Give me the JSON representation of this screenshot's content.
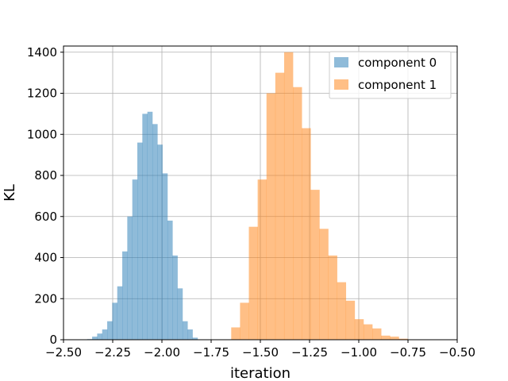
{
  "chart_data": {
    "type": "histogram",
    "xlabel": "iteration",
    "ylabel": "KL",
    "xlim": [
      -2.5,
      -0.5
    ],
    "ylim": [
      0,
      1430
    ],
    "x_ticks": [
      -2.5,
      -2.25,
      -2.0,
      -1.75,
      -1.5,
      -1.25,
      -1.0,
      -0.75,
      -0.5
    ],
    "x_tick_labels": [
      "−2.50",
      "−2.25",
      "−2.00",
      "−1.75",
      "−1.50",
      "−1.25",
      "−1.00",
      "−0.75",
      "−0.50"
    ],
    "y_ticks": [
      0,
      200,
      400,
      600,
      800,
      1000,
      1200,
      1400
    ],
    "y_tick_labels": [
      "0",
      "200",
      "400",
      "600",
      "800",
      "1000",
      "1200",
      "1400"
    ],
    "grid": true,
    "legend_position": "top-right",
    "series": [
      {
        "name": "component 0",
        "color": "#1f77b4",
        "opacity": 0.5,
        "bin_start": -2.38,
        "bin_width": 0.0255,
        "counts": [
          3,
          15,
          30,
          50,
          90,
          180,
          260,
          430,
          600,
          780,
          960,
          1100,
          1110,
          1050,
          950,
          810,
          580,
          410,
          250,
          90,
          50,
          10
        ]
      },
      {
        "name": "component 1",
        "color": "#ff7f0e",
        "opacity": 0.5,
        "bin_start": -1.648,
        "bin_width": 0.0448,
        "counts": [
          60,
          180,
          550,
          780,
          1200,
          1300,
          1400,
          1230,
          1030,
          730,
          540,
          410,
          280,
          190,
          100,
          75,
          55,
          20,
          15,
          5
        ]
      }
    ]
  }
}
